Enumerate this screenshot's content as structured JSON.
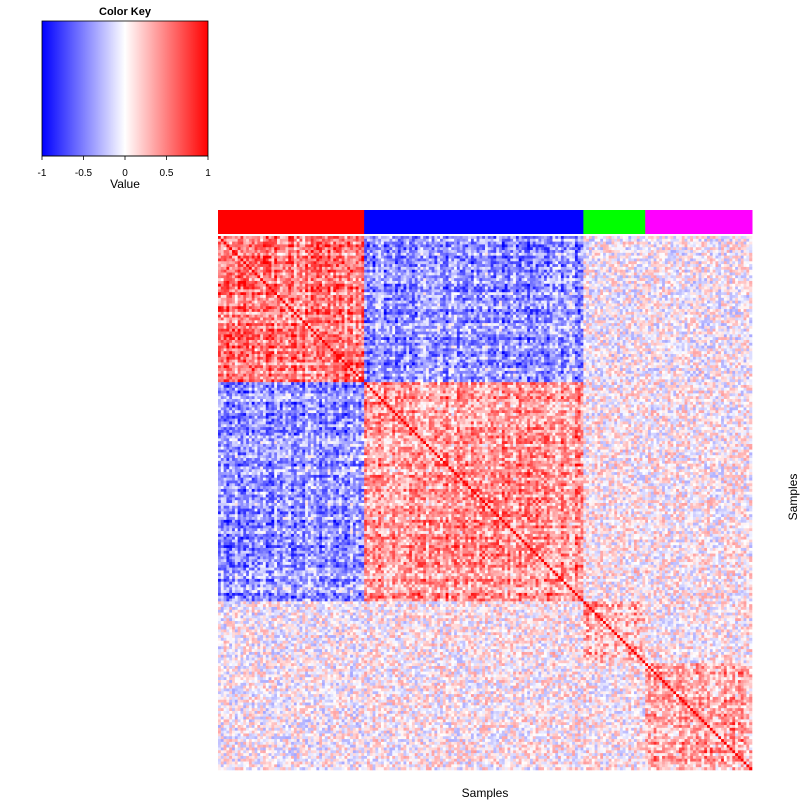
{
  "chart_data": {
    "type": "heatmap",
    "title": "",
    "xlabel": "Samples",
    "ylabel": "Samples",
    "color_key": {
      "title": "Color Key",
      "label": "Value",
      "range": [
        -1,
        1
      ],
      "ticks": [
        "-1",
        "-0.5",
        "0",
        "0.5",
        "1"
      ],
      "colors": [
        "#0000ff",
        "#ffffff",
        "#ff0000"
      ]
    },
    "groups": [
      {
        "color": "#ff0000",
        "fraction": 0.273
      },
      {
        "color": "#0000ff",
        "fraction": 0.413
      },
      {
        "color": "#00ff00",
        "fraction": 0.117
      },
      {
        "color": "#ff00ff",
        "fraction": 0.197
      }
    ],
    "block_correlation": [
      [
        0.6,
        -0.5,
        0.0,
        0.0
      ],
      [
        -0.5,
        0.5,
        0.05,
        0.05
      ],
      [
        0.0,
        0.05,
        0.35,
        0.05
      ],
      [
        0.0,
        0.05,
        0.05,
        0.45
      ]
    ],
    "diagonal_value": 1,
    "samples": 190
  }
}
